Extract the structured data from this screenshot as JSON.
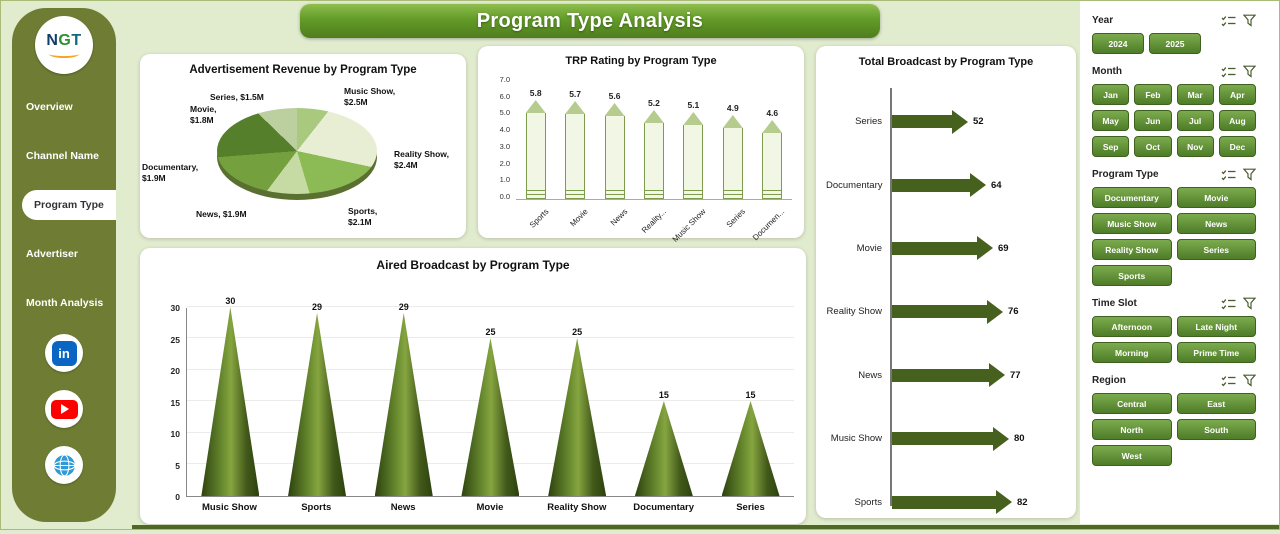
{
  "page": {
    "title": "Program Type Analysis"
  },
  "colors": {
    "background": "#e1ebce",
    "sidebar_olive": "#6f7d34",
    "header_green": "#639b28",
    "button_green": "#5d8b37",
    "shape_dark_green": "#46601d",
    "accent_orange": "#f5a623",
    "linkedin_blue": "#0a66c2",
    "youtube_red": "#ff0000"
  },
  "sidebar": {
    "logo_text": "NGT",
    "linkedin_text": "in",
    "items": [
      {
        "label": "Overview",
        "active": false
      },
      {
        "label": "Channel Name",
        "active": false
      },
      {
        "label": "Program Type",
        "active": true
      },
      {
        "label": "Advertiser",
        "active": false
      },
      {
        "label": "Month Analysis",
        "active": false
      }
    ],
    "social_icons": [
      "linkedin-icon",
      "youtube-icon",
      "globe-icon"
    ]
  },
  "chart_data": [
    {
      "type": "pie",
      "title": "Advertisement Revenue by Program Type",
      "labels": [
        "Series",
        "Music Show",
        "Reality Show",
        "Sports",
        "News",
        "Documentary",
        "Movie"
      ],
      "values": [
        1.5,
        2.5,
        2.4,
        2.1,
        1.9,
        1.9,
        1.8
      ],
      "unit": "$M",
      "data_labels": [
        "Series, $1.5M",
        "Music Show, $2.5M",
        "Reality Show, $2.4M",
        "Sports, $2.1M",
        "News, $1.9M",
        "Documentary, $1.9M",
        "Movie, $1.8M"
      ],
      "colors": [
        "#a9c97e",
        "#e7eed4",
        "#8cba55",
        "#c6dba4",
        "#74a03e",
        "#567f2b",
        "#bccf9f"
      ]
    },
    {
      "type": "bar",
      "style": "pencil",
      "title": "TRP Rating by Program Type",
      "categories": [
        "Sports",
        "Movie",
        "News",
        "Reality...",
        "Music Show",
        "Series",
        "Documen..."
      ],
      "values": [
        5.8,
        5.7,
        5.6,
        5.2,
        5.1,
        4.9,
        4.6
      ],
      "ylim": [
        0,
        7
      ],
      "yticks": [
        "7.0",
        "6.0",
        "5.0",
        "4.0",
        "3.0",
        "2.0",
        "1.0",
        "0.0"
      ]
    },
    {
      "type": "bar",
      "style": "cone",
      "title": "Aired Broadcast by Program Type",
      "categories": [
        "Music Show",
        "Sports",
        "News",
        "Movie",
        "Reality Show",
        "Documentary",
        "Series"
      ],
      "values": [
        30,
        29,
        29,
        25,
        25,
        15,
        15
      ],
      "ylim": [
        0,
        30
      ],
      "yticks": [
        0,
        5,
        10,
        15,
        20,
        25,
        30
      ]
    },
    {
      "type": "bar",
      "style": "arrow",
      "orientation": "horizontal",
      "title": "Total Broadcast by Program Type",
      "categories": [
        "Series",
        "Documentary",
        "Movie",
        "Reality Show",
        "News",
        "Music Show",
        "Sports"
      ],
      "values": [
        52,
        64,
        69,
        76,
        77,
        80,
        82
      ],
      "xlim": [
        0,
        90
      ]
    }
  ],
  "filters": [
    {
      "label": "Year",
      "options": [
        "2024",
        "2025"
      ]
    },
    {
      "label": "Month",
      "options": [
        "Jan",
        "Feb",
        "Mar",
        "Apr",
        "May",
        "Jun",
        "Jul",
        "Aug",
        "Sep",
        "Oct",
        "Nov",
        "Dec"
      ]
    },
    {
      "label": "Program Type",
      "options": [
        "Documentary",
        "Movie",
        "Music Show",
        "News",
        "Reality Show",
        "Series",
        "Sports"
      ]
    },
    {
      "label": "Time Slot",
      "options": [
        "Afternoon",
        "Late Night",
        "Morning",
        "Prime Time"
      ]
    },
    {
      "label": "Region",
      "options": [
        "Central",
        "East",
        "North",
        "South",
        "West"
      ]
    }
  ]
}
